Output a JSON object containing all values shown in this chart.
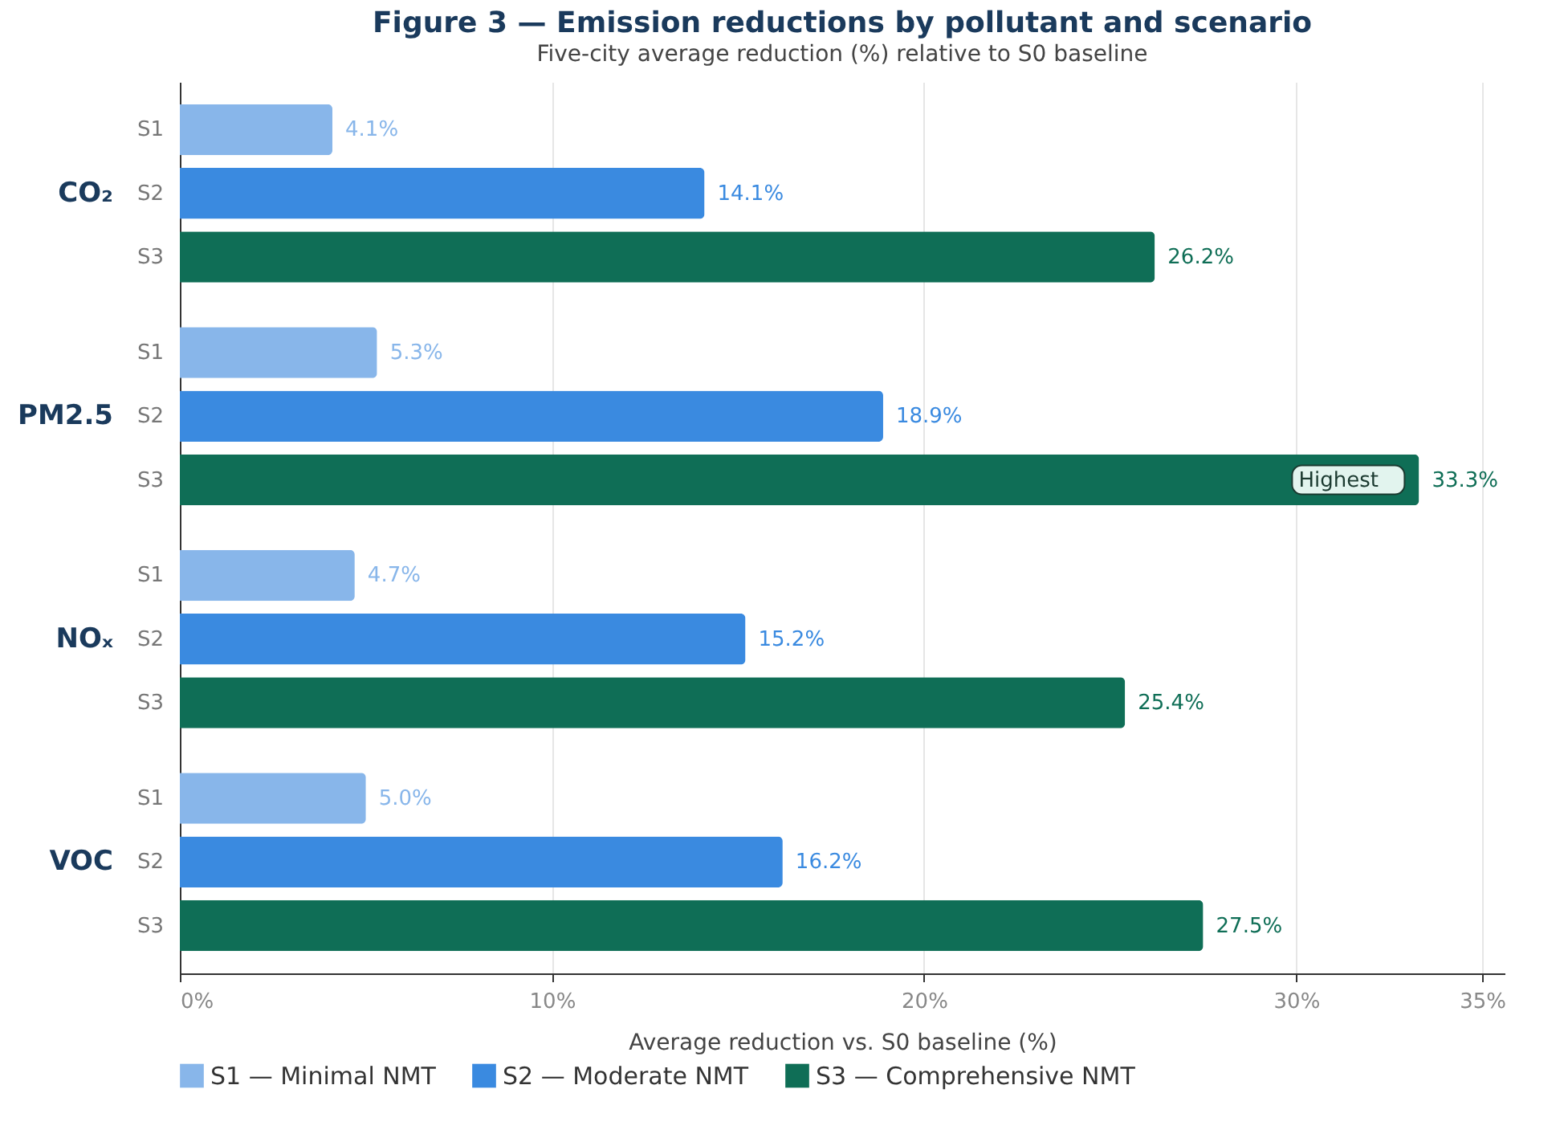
{
  "chart_data": {
    "type": "bar",
    "orientation": "horizontal",
    "title": "Figure 3 — Emission reductions by pollutant and scenario",
    "subtitle": "Five-city average reduction (%) relative to S0 baseline",
    "xlabel": "Average reduction vs. S0 baseline (%)",
    "categories": [
      "CO₂",
      "PM2.5",
      "NOₓ",
      "VOC"
    ],
    "series": [
      {
        "name": "S1 — Minimal NMT",
        "color": "#88b6ea",
        "values": [
          4.1,
          5.3,
          4.7,
          5.0
        ],
        "value_labels": [
          "4.1%",
          "5.3%",
          "4.7%",
          "5.0%"
        ]
      },
      {
        "name": "S2 — Moderate NMT",
        "color": "#3a8ae0",
        "values": [
          14.1,
          18.9,
          15.2,
          16.2
        ],
        "value_labels": [
          "14.1%",
          "18.9%",
          "15.2%",
          "16.2%"
        ]
      },
      {
        "name": "S3 — Comprehensive NMT",
        "color": "#0f6e56",
        "values": [
          26.2,
          33.3,
          25.4,
          27.5
        ],
        "value_labels": [
          "26.2%",
          "33.3%",
          "25.4%",
          "27.5%"
        ]
      }
    ],
    "annotations": [
      "S1",
      "S2",
      "S3",
      "Highest"
    ],
    "xlim": [
      0,
      35.6
    ],
    "xticks": [
      {
        "value": 0,
        "label": "0%"
      },
      {
        "value": 10,
        "label": "10%"
      },
      {
        "value": 20,
        "label": "20%"
      },
      {
        "value": 30,
        "label": "30%"
      },
      {
        "value": 35,
        "label": "35%"
      }
    ],
    "grid": "x",
    "legend": "bottom"
  }
}
